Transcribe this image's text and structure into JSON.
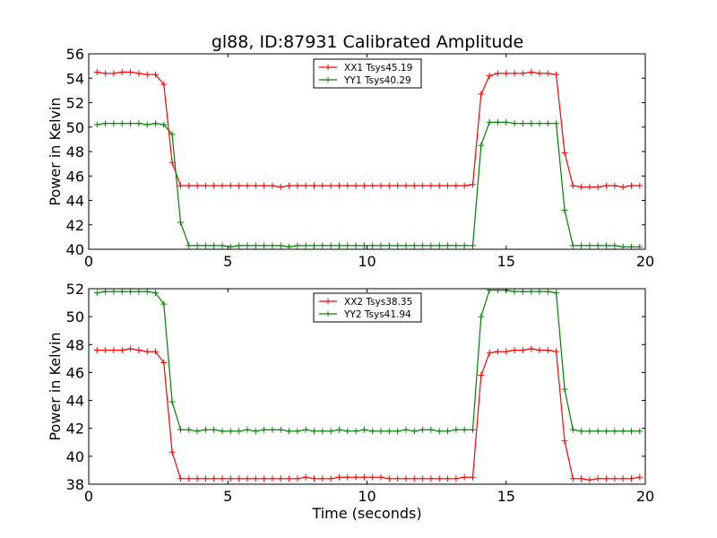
{
  "title": "gl88, ID:87931 Calibrated Amplitude",
  "chart_data": [
    {
      "type": "line",
      "ylabel": "Power in Kelvin",
      "xlabel": "",
      "xlim": [
        0,
        20
      ],
      "ylim": [
        40,
        56
      ],
      "xticks": [
        0,
        5,
        10,
        15,
        20
      ],
      "yticks": [
        40,
        42,
        44,
        46,
        48,
        50,
        52,
        54,
        56
      ],
      "legend_position": "top-center",
      "x": [
        0.3,
        0.6,
        0.9,
        1.2,
        1.5,
        1.8,
        2.1,
        2.4,
        2.7,
        3.0,
        3.3,
        3.6,
        3.9,
        4.2,
        4.5,
        4.8,
        5.1,
        5.4,
        5.7,
        6.0,
        6.3,
        6.6,
        6.9,
        7.2,
        7.5,
        7.8,
        8.1,
        8.4,
        8.7,
        9.0,
        9.3,
        9.6,
        9.9,
        10.2,
        10.5,
        10.8,
        11.1,
        11.4,
        11.7,
        12.0,
        12.3,
        12.6,
        12.9,
        13.2,
        13.5,
        13.8,
        14.1,
        14.4,
        14.7,
        15.0,
        15.3,
        15.6,
        15.9,
        16.2,
        16.5,
        16.8,
        17.1,
        17.4,
        17.7,
        18.0,
        18.3,
        18.6,
        18.9,
        19.2,
        19.5,
        19.8
      ],
      "series": [
        {
          "name": "XX1 Tsys45.19",
          "color": "#ff0000",
          "values": [
            54.5,
            54.4,
            54.4,
            54.5,
            54.5,
            54.4,
            54.3,
            54.3,
            53.5,
            47.1,
            45.2,
            45.2,
            45.2,
            45.2,
            45.2,
            45.2,
            45.2,
            45.2,
            45.2,
            45.2,
            45.2,
            45.2,
            45.1,
            45.2,
            45.2,
            45.2,
            45.2,
            45.2,
            45.2,
            45.2,
            45.2,
            45.2,
            45.2,
            45.2,
            45.2,
            45.2,
            45.2,
            45.2,
            45.2,
            45.2,
            45.2,
            45.2,
            45.2,
            45.2,
            45.2,
            45.3,
            52.7,
            54.2,
            54.4,
            54.4,
            54.4,
            54.4,
            54.5,
            54.4,
            54.4,
            54.3,
            47.9,
            45.2,
            45.1,
            45.1,
            45.1,
            45.2,
            45.2,
            45.1,
            45.2,
            45.2
          ]
        },
        {
          "name": "YY1 Tsys40.29",
          "color": "#008000",
          "values": [
            50.2,
            50.3,
            50.3,
            50.3,
            50.3,
            50.3,
            50.2,
            50.3,
            50.2,
            49.4,
            42.2,
            40.3,
            40.3,
            40.3,
            40.3,
            40.3,
            40.2,
            40.3,
            40.3,
            40.3,
            40.3,
            40.3,
            40.3,
            40.2,
            40.3,
            40.3,
            40.3,
            40.3,
            40.3,
            40.3,
            40.3,
            40.3,
            40.3,
            40.3,
            40.3,
            40.3,
            40.3,
            40.3,
            40.3,
            40.3,
            40.3,
            40.3,
            40.3,
            40.3,
            40.3,
            40.3,
            48.5,
            50.4,
            50.4,
            50.4,
            50.3,
            50.3,
            50.3,
            50.3,
            50.3,
            50.3,
            43.2,
            40.3,
            40.3,
            40.3,
            40.3,
            40.3,
            40.3,
            40.2,
            40.2,
            40.2
          ]
        }
      ]
    },
    {
      "type": "line",
      "ylabel": "Power in Kelvin",
      "xlabel": "Time (seconds)",
      "xlim": [
        0,
        20
      ],
      "ylim": [
        38,
        52
      ],
      "xticks": [
        0,
        5,
        10,
        15,
        20
      ],
      "yticks": [
        38,
        40,
        42,
        44,
        46,
        48,
        50,
        52
      ],
      "legend_position": "top-center",
      "x": [
        0.3,
        0.6,
        0.9,
        1.2,
        1.5,
        1.8,
        2.1,
        2.4,
        2.7,
        3.0,
        3.3,
        3.6,
        3.9,
        4.2,
        4.5,
        4.8,
        5.1,
        5.4,
        5.7,
        6.0,
        6.3,
        6.6,
        6.9,
        7.2,
        7.5,
        7.8,
        8.1,
        8.4,
        8.7,
        9.0,
        9.3,
        9.6,
        9.9,
        10.2,
        10.5,
        10.8,
        11.1,
        11.4,
        11.7,
        12.0,
        12.3,
        12.6,
        12.9,
        13.2,
        13.5,
        13.8,
        14.1,
        14.4,
        14.7,
        15.0,
        15.3,
        15.6,
        15.9,
        16.2,
        16.5,
        16.8,
        17.1,
        17.4,
        17.7,
        18.0,
        18.3,
        18.6,
        18.9,
        19.2,
        19.5,
        19.8
      ],
      "series": [
        {
          "name": "XX2 Tsys38.35",
          "color": "#ff0000",
          "values": [
            47.6,
            47.6,
            47.6,
            47.6,
            47.7,
            47.6,
            47.5,
            47.5,
            46.7,
            40.3,
            38.4,
            38.4,
            38.4,
            38.4,
            38.4,
            38.4,
            38.4,
            38.4,
            38.4,
            38.4,
            38.4,
            38.4,
            38.4,
            38.4,
            38.4,
            38.5,
            38.4,
            38.4,
            38.4,
            38.5,
            38.5,
            38.5,
            38.5,
            38.5,
            38.5,
            38.4,
            38.4,
            38.4,
            38.4,
            38.4,
            38.4,
            38.4,
            38.4,
            38.4,
            38.5,
            38.5,
            45.8,
            47.4,
            47.5,
            47.5,
            47.6,
            47.6,
            47.7,
            47.6,
            47.6,
            47.5,
            41.1,
            38.4,
            38.4,
            38.3,
            38.4,
            38.4,
            38.4,
            38.4,
            38.4,
            38.5
          ]
        },
        {
          "name": "YY2 Tsys41.94",
          "color": "#008000",
          "values": [
            51.7,
            51.8,
            51.8,
            51.8,
            51.8,
            51.8,
            51.8,
            51.7,
            50.9,
            43.9,
            41.9,
            41.9,
            41.8,
            41.9,
            41.9,
            41.8,
            41.8,
            41.8,
            41.9,
            41.8,
            41.9,
            41.9,
            41.9,
            41.8,
            41.8,
            41.9,
            41.8,
            41.8,
            41.8,
            41.9,
            41.8,
            41.8,
            41.9,
            41.8,
            41.8,
            41.8,
            41.8,
            41.9,
            41.8,
            41.9,
            41.9,
            41.8,
            41.8,
            41.9,
            41.9,
            41.9,
            50.0,
            51.9,
            51.9,
            51.9,
            51.8,
            51.8,
            51.8,
            51.8,
            51.8,
            51.7,
            44.8,
            41.9,
            41.8,
            41.8,
            41.8,
            41.8,
            41.8,
            41.8,
            41.8,
            41.8
          ]
        }
      ]
    }
  ]
}
